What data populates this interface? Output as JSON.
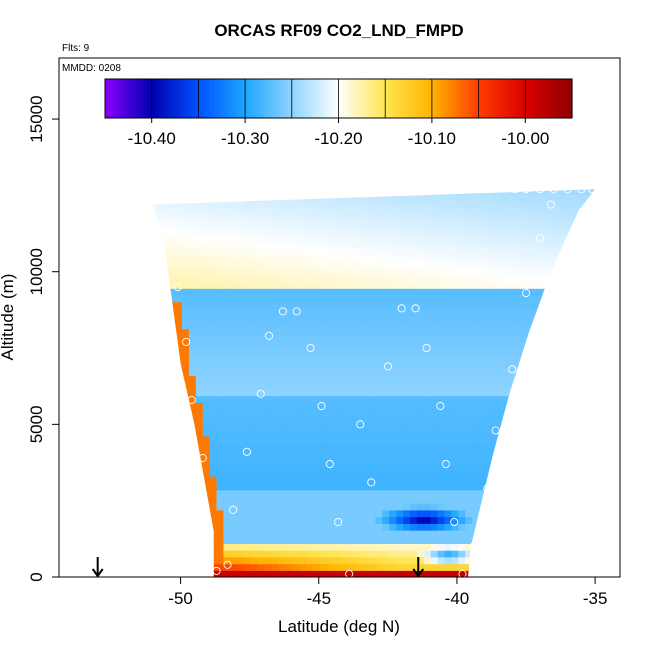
{
  "chart_data": {
    "type": "heatmap",
    "title": "ORCAS RF09 CO2_LND_FMPD",
    "annotations": {
      "flts": "Flts: 9",
      "mmdd": "MMDD: 0208"
    },
    "xlabel": "Latitude (deg N)",
    "ylabel": "Altitude (m)",
    "xlim": [
      -54.4,
      -34.1
    ],
    "ylim": [
      0,
      17000
    ],
    "xticks": [
      -50,
      -45,
      -40,
      -35
    ],
    "xtick_labels": [
      "-50",
      "-45",
      "-40",
      "-35"
    ],
    "yticks": [
      0,
      5000,
      10000,
      15000
    ],
    "ytick_labels": [
      "0",
      "5000",
      "10000",
      "15000"
    ],
    "colorbar": {
      "range": [
        -10.45,
        -9.95
      ],
      "ticks": [
        -10.4,
        -10.3,
        -10.2,
        -10.1,
        -10.0
      ],
      "tick_labels": [
        "-10.40",
        "-10.30",
        "-10.20",
        "-10.10",
        "-10.00"
      ],
      "colors": [
        "#8a00ff",
        "#0000b0",
        "#0050ff",
        "#1ea6ff",
        "#8ed3ff",
        "#ffffff",
        "#ffe550",
        "#ffb400",
        "#ff3c00",
        "#d80000",
        "#900000"
      ]
    },
    "curtain": {
      "lat_left_edge": [
        [
          0,
          -48.8
        ],
        [
          1500,
          -48.8
        ],
        [
          3500,
          -49.2
        ],
        [
          5000,
          -49.5
        ],
        [
          7000,
          -50.0
        ],
        [
          9000,
          -50.3
        ],
        [
          11000,
          -50.6
        ],
        [
          12200,
          -51.0
        ]
      ],
      "lat_right_edge": [
        [
          0,
          -39.6
        ],
        [
          1000,
          -39.5
        ],
        [
          2500,
          -39.1
        ],
        [
          4000,
          -38.7
        ],
        [
          6000,
          -38.1
        ],
        [
          8000,
          -37.4
        ],
        [
          10000,
          -36.6
        ],
        [
          12000,
          -35.6
        ],
        [
          12700,
          -35.0
        ]
      ],
      "top_left": [
        -51.0,
        12200
      ],
      "top_right": [
        -35.0,
        12700
      ]
    },
    "sample_points": [
      {
        "lat": -51.0,
        "alt": 12200
      },
      {
        "lat": -50.4,
        "alt": 11300
      },
      {
        "lat": -50.1,
        "alt": 9500
      },
      {
        "lat": -49.8,
        "alt": 7700
      },
      {
        "lat": -49.6,
        "alt": 5800
      },
      {
        "lat": -49.2,
        "alt": 3900
      },
      {
        "lat": -48.1,
        "alt": 2200
      },
      {
        "lat": -48.3,
        "alt": 400
      },
      {
        "lat": -48.7,
        "alt": 200
      },
      {
        "lat": -47.1,
        "alt": 6000
      },
      {
        "lat": -47.6,
        "alt": 4100
      },
      {
        "lat": -46.3,
        "alt": 8700
      },
      {
        "lat": -45.8,
        "alt": 8700
      },
      {
        "lat": -46.8,
        "alt": 7900
      },
      {
        "lat": -45.3,
        "alt": 7500
      },
      {
        "lat": -44.9,
        "alt": 5600
      },
      {
        "lat": -44.6,
        "alt": 3700
      },
      {
        "lat": -44.3,
        "alt": 1800
      },
      {
        "lat": -43.9,
        "alt": 100
      },
      {
        "lat": -43.5,
        "alt": 5000
      },
      {
        "lat": -43.1,
        "alt": 3100
      },
      {
        "lat": -42.5,
        "alt": 6900
      },
      {
        "lat": -42.0,
        "alt": 8800
      },
      {
        "lat": -41.5,
        "alt": 8800
      },
      {
        "lat": -41.1,
        "alt": 7500
      },
      {
        "lat": -40.6,
        "alt": 5600
      },
      {
        "lat": -40.4,
        "alt": 3700
      },
      {
        "lat": -40.1,
        "alt": 1800
      },
      {
        "lat": -39.8,
        "alt": 100
      },
      {
        "lat": -39.4,
        "alt": 1000
      },
      {
        "lat": -38.9,
        "alt": 2900
      },
      {
        "lat": -38.6,
        "alt": 4800
      },
      {
        "lat": -38.0,
        "alt": 6800
      },
      {
        "lat": -37.5,
        "alt": 9300
      },
      {
        "lat": -37.0,
        "alt": 11100
      },
      {
        "lat": -36.6,
        "alt": 12200
      },
      {
        "lat": -37.9,
        "alt": 12700
      },
      {
        "lat": -37.5,
        "alt": 12700
      },
      {
        "lat": -37.0,
        "alt": 12700
      },
      {
        "lat": -36.5,
        "alt": 12700
      },
      {
        "lat": -36.0,
        "alt": 12700
      },
      {
        "lat": -35.5,
        "alt": 12700
      },
      {
        "lat": -35.1,
        "alt": 12700
      }
    ],
    "arrows": [
      {
        "lat": -53.0
      },
      {
        "lat": -41.4
      }
    ]
  }
}
